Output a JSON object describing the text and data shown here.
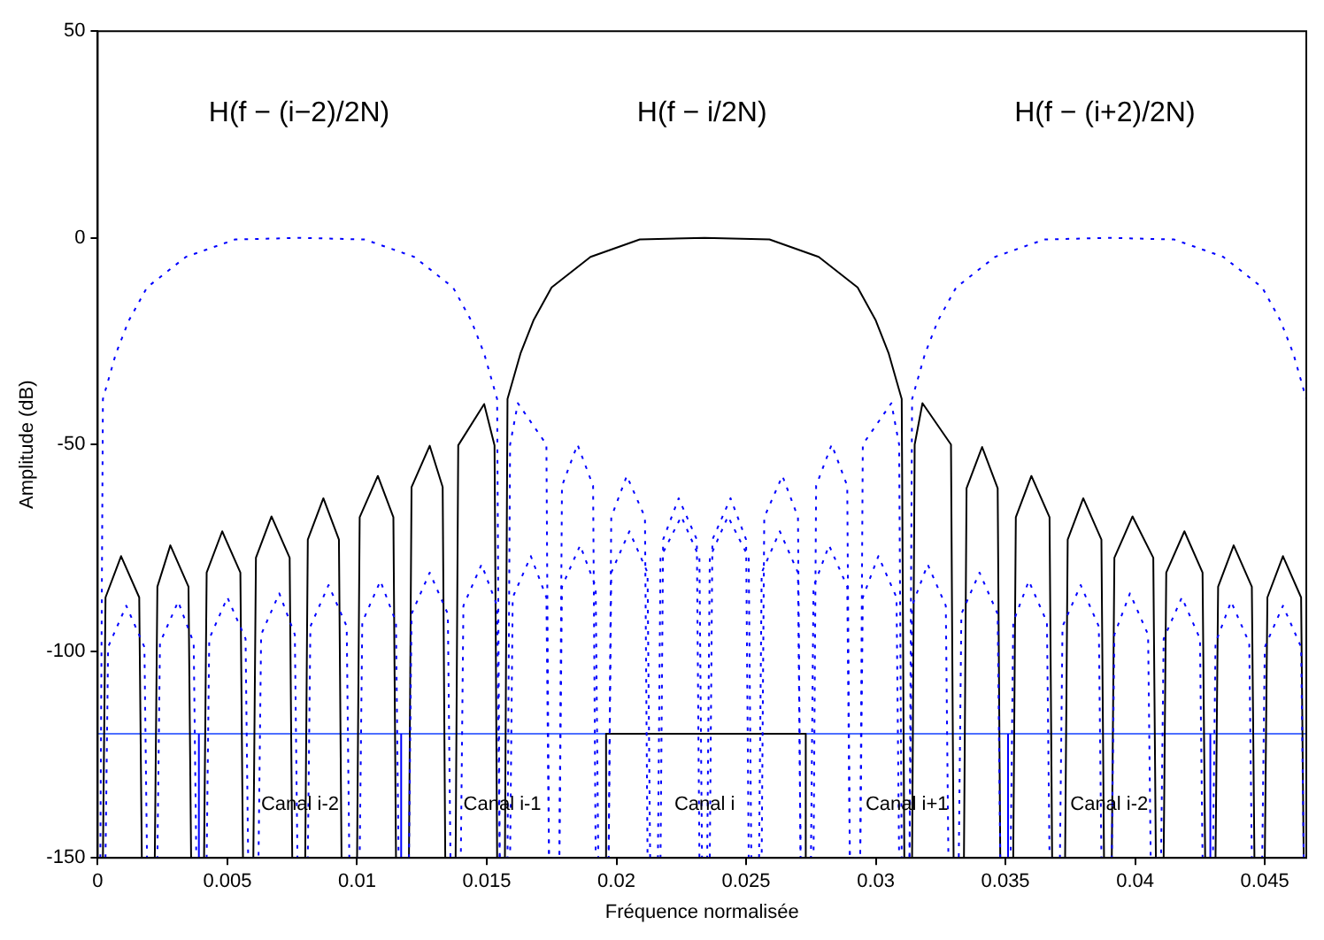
{
  "chart_data": {
    "type": "line",
    "xlabel": "Fréquence normalisée",
    "ylabel": "Amplitude (dB)",
    "xlim": [
      0,
      0.0466
    ],
    "ylim": [
      -150,
      50
    ],
    "xticks": [
      0,
      0.005,
      0.01,
      0.015,
      0.02,
      0.025,
      0.03,
      0.035,
      0.04,
      0.045
    ],
    "yticks": [
      -150,
      -100,
      -50,
      0,
      50
    ],
    "grid": false,
    "legend": false,
    "marker": "none",
    "series": [
      {
        "color": "#0000ff",
        "line_style": "dotted",
        "x": [
          0.0001,
          0.0002,
          0.0007,
          0.0012,
          0.0019,
          0.0034,
          0.0053,
          0.0078,
          0.0103,
          0.0122,
          0.0137,
          0.0144,
          0.0149,
          0.0154,
          0.0155,
          0.0158,
          0.0159,
          0.0162,
          0.0173,
          0.0174,
          0.0178,
          0.0179,
          0.0185,
          0.0191,
          0.0192,
          0.0197,
          0.0198,
          0.0204,
          0.0211,
          0.0212,
          0.0217,
          0.0218,
          0.0224,
          0.0231,
          0.0232,
          0.0235,
          0.0236,
          0.0243,
          0.0251,
          0.0252,
          0.0255,
          0.0256,
          0.0263,
          0.027,
          0.0271,
          0.0275,
          0.0276,
          0.0282,
          0.0289,
          0.029,
          0.0294,
          0.0295,
          0.0301,
          0.0308,
          0.0309,
          0.0313,
          0.0314,
          0.032,
          0.0327,
          0.0328,
          0.0332,
          0.0333,
          0.034,
          0.0347,
          0.0348,
          0.0352,
          0.0353,
          0.0359,
          0.0366,
          0.0367,
          0.0371,
          0.0372,
          0.0379,
          0.0386,
          0.0387,
          0.0391,
          0.0392,
          0.0398,
          0.0405,
          0.0406,
          0.041,
          0.0411,
          0.0418,
          0.0425,
          0.0426,
          0.043,
          0.0431,
          0.0437,
          0.0444,
          0.0445,
          0.0449,
          0.045,
          0.0457,
          0.0464,
          0.0465
        ],
        "values": [
          -150,
          -39,
          -28,
          -20,
          -12,
          -4.6,
          -0.4,
          0,
          -0.4,
          -4.6,
          -12,
          -20,
          -28,
          -39,
          -150,
          -150,
          -50,
          -40,
          -50,
          -150,
          -150,
          -60,
          -50,
          -60,
          -150,
          -150,
          -67.6,
          -57.6,
          -67.6,
          -150,
          -150,
          -73,
          -63,
          -73,
          -150,
          -150,
          -77.4,
          -67.4,
          -77.4,
          -150,
          -150,
          -81,
          -71,
          -81,
          -150,
          -150,
          -84.4,
          -74.4,
          -84.4,
          -150,
          -150,
          -87,
          -77,
          -87,
          -150,
          -150,
          -89,
          -79,
          -89,
          -150,
          -150,
          -91,
          -81,
          -91,
          -150,
          -150,
          -93,
          -83,
          -93,
          -150,
          -150,
          -94,
          -84,
          -94,
          -150,
          -150,
          -96,
          -86,
          -96,
          -150,
          -150,
          -97,
          -87,
          -97,
          -150,
          -150,
          -98,
          -88,
          -98,
          -150,
          -150,
          -99,
          -89,
          -99,
          -150
        ]
      },
      {
        "color": "#0000ff",
        "line_style": "dotted",
        "x": [
          0.0003,
          0.0004,
          0.0011,
          0.0018,
          0.0019,
          0.0023,
          0.0024,
          0.0031,
          0.0037,
          0.0038,
          0.0042,
          0.0043,
          0.005,
          0.0057,
          0.0058,
          0.0062,
          0.0063,
          0.007,
          0.0076,
          0.0077,
          0.0081,
          0.0082,
          0.0089,
          0.0096,
          0.0097,
          0.0101,
          0.0102,
          0.0109,
          0.0115,
          0.0116,
          0.012,
          0.0121,
          0.0128,
          0.0135,
          0.0136,
          0.014,
          0.0141,
          0.0148,
          0.0154,
          0.0155,
          0.0159,
          0.016,
          0.0167,
          0.0173,
          0.0174,
          0.0178,
          0.0179,
          0.0186,
          0.0192,
          0.0193,
          0.0197,
          0.0198,
          0.0205,
          0.0212,
          0.0213,
          0.0216,
          0.0217,
          0.0225,
          0.0232,
          0.0233,
          0.0236,
          0.0237,
          0.0244,
          0.025,
          0.0251,
          0.0256,
          0.0257,
          0.0264,
          0.027,
          0.0271,
          0.0276,
          0.0277,
          0.0283,
          0.0289,
          0.029,
          0.0294,
          0.0295,
          0.0306,
          0.0309,
          0.031,
          0.0313,
          0.0314,
          0.0319,
          0.0324,
          0.0331,
          0.0346,
          0.0365,
          0.039,
          0.0415,
          0.0434,
          0.0449,
          0.0456,
          0.0461,
          0.0466
        ],
        "values": [
          -150,
          -99,
          -89,
          -99,
          -150,
          -150,
          -98,
          -88,
          -98,
          -150,
          -150,
          -97,
          -87,
          -97,
          -150,
          -150,
          -96,
          -86,
          -96,
          -150,
          -150,
          -94,
          -84,
          -94,
          -150,
          -150,
          -93,
          -83,
          -93,
          -150,
          -150,
          -91,
          -81,
          -91,
          -150,
          -150,
          -89,
          -79,
          -89,
          -150,
          -150,
          -87,
          -77,
          -87,
          -150,
          -150,
          -84.4,
          -74.4,
          -84.4,
          -150,
          -150,
          -81,
          -71,
          -81,
          -150,
          -150,
          -77.4,
          -67.4,
          -77.4,
          -150,
          -150,
          -73,
          -63,
          -73,
          -150,
          -150,
          -67.6,
          -57.6,
          -67.6,
          -150,
          -150,
          -60,
          -50,
          -60,
          -150,
          -150,
          -50,
          -40,
          -50,
          -150,
          -150,
          -39,
          -28,
          -20,
          -12,
          -4.6,
          -0.4,
          0,
          -0.4,
          -4.6,
          -12,
          -20,
          -28,
          -39
        ]
      },
      {
        "color": "#000000",
        "line_style": "solid",
        "x": [
          0.0002,
          0.0003,
          0.0009,
          0.0016,
          0.0017,
          0.0022,
          0.0023,
          0.0028,
          0.0035,
          0.0036,
          0.0041,
          0.0042,
          0.0048,
          0.0055,
          0.0056,
          0.006,
          0.0061,
          0.0067,
          0.0074,
          0.0075,
          0.008,
          0.0081,
          0.0087,
          0.0093,
          0.0094,
          0.01,
          0.0101,
          0.0108,
          0.0114,
          0.0115,
          0.012,
          0.0121,
          0.0128,
          0.0133,
          0.0134,
          0.0138,
          0.0139,
          0.0149,
          0.0153,
          0.0154,
          0.0157,
          0.0158,
          0.0163,
          0.0168,
          0.0175,
          0.019,
          0.0209,
          0.0234,
          0.0259,
          0.0278,
          0.0293,
          0.03,
          0.0305,
          0.031,
          0.0311,
          0.0314,
          0.0315,
          0.0318,
          0.0329,
          0.033,
          0.0334,
          0.0335,
          0.0341,
          0.0347,
          0.0348,
          0.0353,
          0.0354,
          0.036,
          0.0367,
          0.0368,
          0.0373,
          0.0374,
          0.038,
          0.0387,
          0.0388,
          0.0391,
          0.0392,
          0.0399,
          0.0407,
          0.0408,
          0.0411,
          0.0412,
          0.0419,
          0.0426,
          0.0427,
          0.0431,
          0.0432,
          0.0438,
          0.0445,
          0.0446,
          0.045,
          0.0451,
          0.0457,
          0.0464,
          0.0465
        ],
        "values": [
          -150,
          -87,
          -77,
          -87,
          -150,
          -150,
          -84.4,
          -74.4,
          -84.4,
          -150,
          -150,
          -81,
          -71,
          -81,
          -150,
          -150,
          -77.4,
          -67.4,
          -77.4,
          -150,
          -150,
          -73,
          -63,
          -73,
          -150,
          -150,
          -67.6,
          -57.6,
          -67.6,
          -150,
          -150,
          -60.3,
          -50.3,
          -60.3,
          -150,
          -150,
          -50.2,
          -40.2,
          -50.2,
          -150,
          -150,
          -39,
          -28,
          -20,
          -12,
          -4.6,
          -0.4,
          0,
          -0.4,
          -4.6,
          -12,
          -20,
          -28,
          -39,
          -150,
          -150,
          -50,
          -40,
          -50,
          -150,
          -150,
          -60.6,
          -50.6,
          -60.6,
          -150,
          -150,
          -67.6,
          -57.6,
          -67.6,
          -150,
          -150,
          -73,
          -63,
          -73,
          -150,
          -150,
          -77.4,
          -67.4,
          -77.4,
          -150,
          -150,
          -81,
          -71,
          -81,
          -150,
          -150,
          -84.4,
          -74.4,
          -84.4,
          -150,
          -150,
          -87,
          -77,
          -87,
          -150
        ]
      },
      {
        "color": "#000000",
        "line_style": "solid",
        "x": [
          0.0196,
          0.0196,
          0.0273,
          0.0273
        ],
        "values": [
          -150,
          -120,
          -120,
          -150
        ]
      },
      {
        "color": "#0000ff",
        "line_style": "solid",
        "x": [
          0.0039,
          0.0039
        ],
        "values": [
          -150,
          -120
        ]
      },
      {
        "color": "#0000ff",
        "line_style": "solid",
        "x": [
          0.0117,
          0.0117
        ],
        "values": [
          -150,
          -120
        ]
      },
      {
        "color": "#0000ff",
        "line_style": "solid",
        "x": [
          0.0351,
          0.0351
        ],
        "values": [
          -150,
          -120
        ]
      },
      {
        "color": "#0000ff",
        "line_style": "solid",
        "x": [
          0.0429,
          0.0429
        ],
        "values": [
          -150,
          -120
        ]
      }
    ],
    "ref_lines": [
      {
        "axis": "y",
        "value": -120,
        "color": "#4d6fff"
      }
    ],
    "annotations": [
      "H(f − (i−2)/2N)",
      "H(f − i/2N)",
      "H(f − (i+2)/2N)",
      {
        "text": "Canal i-2",
        "x": 0.0078,
        "y": -137
      },
      {
        "text": "Canal i-1",
        "x": 0.0156,
        "y": -137
      },
      {
        "text": "Canal i",
        "x": 0.0234,
        "y": -137
      },
      {
        "text": "Canal i+1",
        "x": 0.0312,
        "y": -137
      },
      {
        "text": "Canal i-2",
        "x": 0.039,
        "y": -137
      }
    ]
  }
}
